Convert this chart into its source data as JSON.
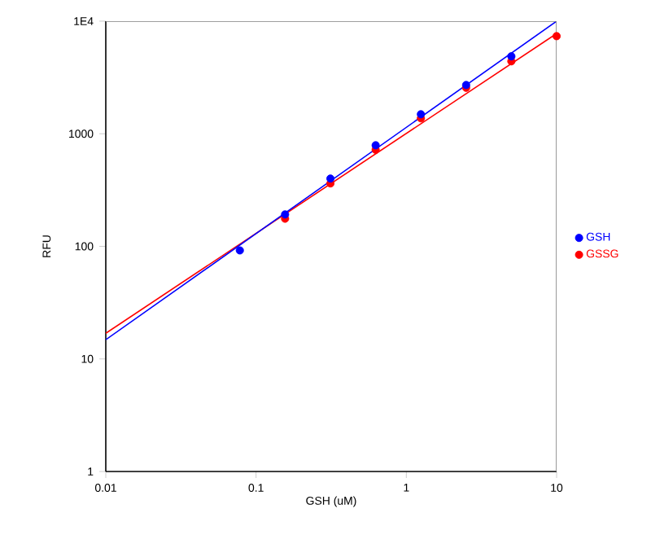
{
  "chart_data": {
    "type": "scatter",
    "xlabel": "GSH (uM)",
    "ylabel": "RFU",
    "log": "xy",
    "legend": "right",
    "grid": false,
    "xlim": [
      0.01,
      10
    ],
    "ylim": [
      1,
      10000
    ],
    "xticks": [
      0.01,
      0.1,
      1,
      10
    ],
    "yticks": [
      1,
      10,
      100,
      1000,
      {
        "value": 10000,
        "label": "1E4"
      }
    ],
    "series": [
      {
        "name": "GSH",
        "marker": "circle",
        "color": "#0000ff",
        "x": [
          0.078,
          0.156,
          0.3125,
          0.625,
          1.25,
          2.5,
          5
        ],
        "values": [
          92,
          192,
          400,
          790,
          1490,
          2710,
          4870
        ]
      },
      {
        "name": "GSSG",
        "marker": "circle",
        "color": "#ff0000",
        "x": [
          0.156,
          0.3125,
          0.625,
          1.25,
          2.5,
          5,
          10
        ],
        "values": [
          176,
          362,
          721,
          1372,
          2560,
          4400,
          7360
        ]
      },
      {
        "type": "line",
        "marker": "none",
        "line_style": "solid",
        "color": "#0000ff",
        "x": [
          0.01,
          10
        ],
        "values": [
          14.8,
          10000
        ]
      },
      {
        "type": "line",
        "marker": "none",
        "line_style": "solid",
        "color": "#ff0000",
        "x": [
          0.01,
          10
        ],
        "values": [
          16.9,
          7760
        ]
      }
    ]
  }
}
